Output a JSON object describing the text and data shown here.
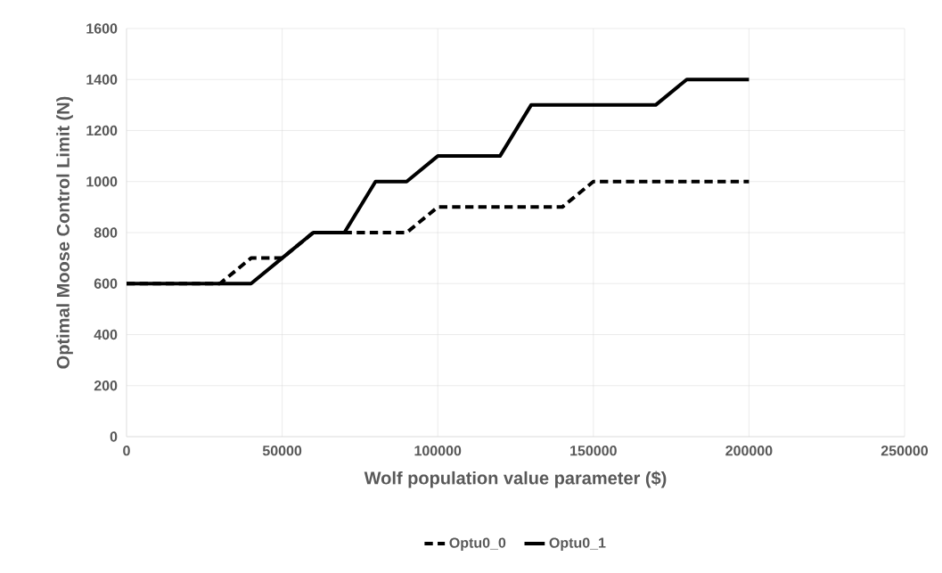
{
  "chart_data": {
    "type": "line",
    "xlabel": "Wolf population value parameter ($)",
    "ylabel": "Optimal Moose Control Limit (N)",
    "x": [
      0,
      10000,
      20000,
      30000,
      40000,
      50000,
      60000,
      70000,
      80000,
      90000,
      100000,
      110000,
      120000,
      130000,
      140000,
      150000,
      160000,
      170000,
      180000,
      190000,
      200000
    ],
    "series": [
      {
        "name": "Optu0_0",
        "color": "#000000",
        "line_style": "dashed",
        "values": [
          600,
          600,
          600,
          600,
          700,
          700,
          800,
          800,
          800,
          800,
          900,
          900,
          900,
          900,
          900,
          1000,
          1000,
          1000,
          1000,
          1000,
          1000
        ]
      },
      {
        "name": "Optu0_1",
        "color": "#000000",
        "line_style": "solid",
        "values": [
          600,
          600,
          600,
          600,
          600,
          700,
          800,
          800,
          1000,
          1000,
          1100,
          1100,
          1100,
          1300,
          1300,
          1300,
          1300,
          1300,
          1400,
          1400,
          1400
        ]
      }
    ],
    "xlim": [
      0,
      250000
    ],
    "ylim": [
      0,
      1600
    ],
    "xticks": [
      0,
      50000,
      100000,
      150000,
      200000,
      250000
    ],
    "yticks": [
      0,
      200,
      400,
      600,
      800,
      1000,
      1200,
      1400,
      1600
    ],
    "grid": true,
    "legend": "bottom",
    "marker": "none"
  }
}
